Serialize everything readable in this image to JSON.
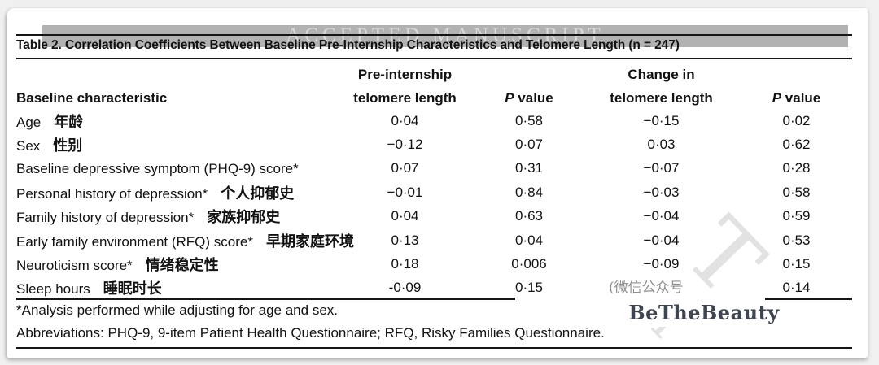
{
  "watermarks": {
    "accepted_manuscript": "ACCEPTED MANUSCRIPT",
    "wechat": "(微信公众号",
    "brand": "BeTheBeauty"
  },
  "colors": {
    "band_gray": "#b2b2b2",
    "band_letters": "#d9d9d9",
    "brand_color": "#3e4450",
    "wechat_gray": "#8f8f8f",
    "rule_black": "#151515"
  },
  "table": {
    "title": "Table 2. Correlation Coefficients Between Baseline Pre-Internship Characteristics and Telomere Length (n = 247)",
    "columns": {
      "characteristic": "Baseline characteristic",
      "group1_line1": "Pre-internship",
      "group1_line2": "telomere length",
      "group2_line1": "Change in",
      "group2_line2": "telomere length",
      "p_italic": "P",
      "p_rest": " value"
    },
    "rows": [
      {
        "label": "Age",
        "zh": "年龄",
        "pre": "0·04",
        "p1": "0·58",
        "change": "−0·15",
        "p2": "0·02"
      },
      {
        "label": "Sex",
        "zh": "性别",
        "pre": "−0·12",
        "p1": "0·07",
        "change": "0·03",
        "p2": "0·62"
      },
      {
        "label": "Baseline depressive symptom (PHQ-9) score*",
        "zh": "",
        "pre": "0·07",
        "p1": "0·31",
        "change": "−0·07",
        "p2": "0·28"
      },
      {
        "label": "Personal history of depression*",
        "zh": "个人抑郁史",
        "pre": "−0·01",
        "p1": "0·84",
        "change": "−0·03",
        "p2": "0·58"
      },
      {
        "label": "Family history of depression*",
        "zh": "家族抑郁史",
        "pre": "0·04",
        "p1": "0·63",
        "change": "−0·04",
        "p2": "0·59"
      },
      {
        "label": "Early family environment (RFQ) score*",
        "zh": "早期家庭环境",
        "pre": "0·13",
        "p1": "0·04",
        "change": "−0·04",
        "p2": "0·53"
      },
      {
        "label": "Neuroticism score*",
        "zh": "情绪稳定性",
        "pre": "0·18",
        "p1": "0·006",
        "change": "−0·09",
        "p2": "0·15"
      },
      {
        "label": "Sleep hours",
        "zh": "睡眠时长",
        "pre": "-0·09",
        "p1": "0·15",
        "change": "",
        "p2": "0·14"
      }
    ],
    "footnotes": {
      "analysis": "*Analysis performed while adjusting for age and sex.",
      "abbreviations": "Abbreviations: PHQ-9, 9-item Patient Health Questionnaire; RFQ, Risky Families Questionnaire."
    }
  }
}
